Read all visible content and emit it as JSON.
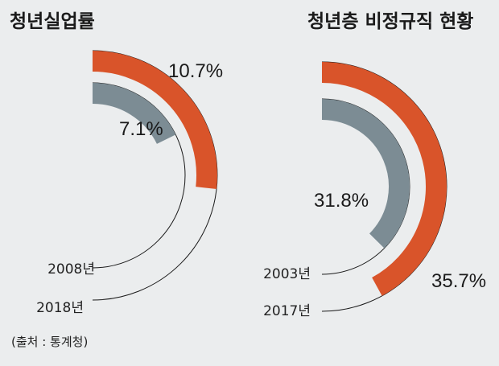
{
  "source": "(출처 : 통계청)",
  "colors": {
    "recent": "#d9542a",
    "past": "#7c8c94",
    "outline": "#1a1a1a",
    "background": "#ebedee"
  },
  "chart_data": [
    {
      "type": "radial-bar",
      "title": "청년실업률",
      "unit": "%",
      "series": [
        {
          "name": "2008년",
          "value": 7.1,
          "label": "7.1%"
        },
        {
          "name": "2018년",
          "value": 10.7,
          "label": "10.7%"
        }
      ]
    },
    {
      "type": "radial-bar",
      "title": "청년층 비정규직 현황",
      "unit": "%",
      "series": [
        {
          "name": "2003년",
          "value": 31.8,
          "label": "31.8%"
        },
        {
          "name": "2017년",
          "value": 35.7,
          "label": "35.7%"
        }
      ]
    }
  ]
}
